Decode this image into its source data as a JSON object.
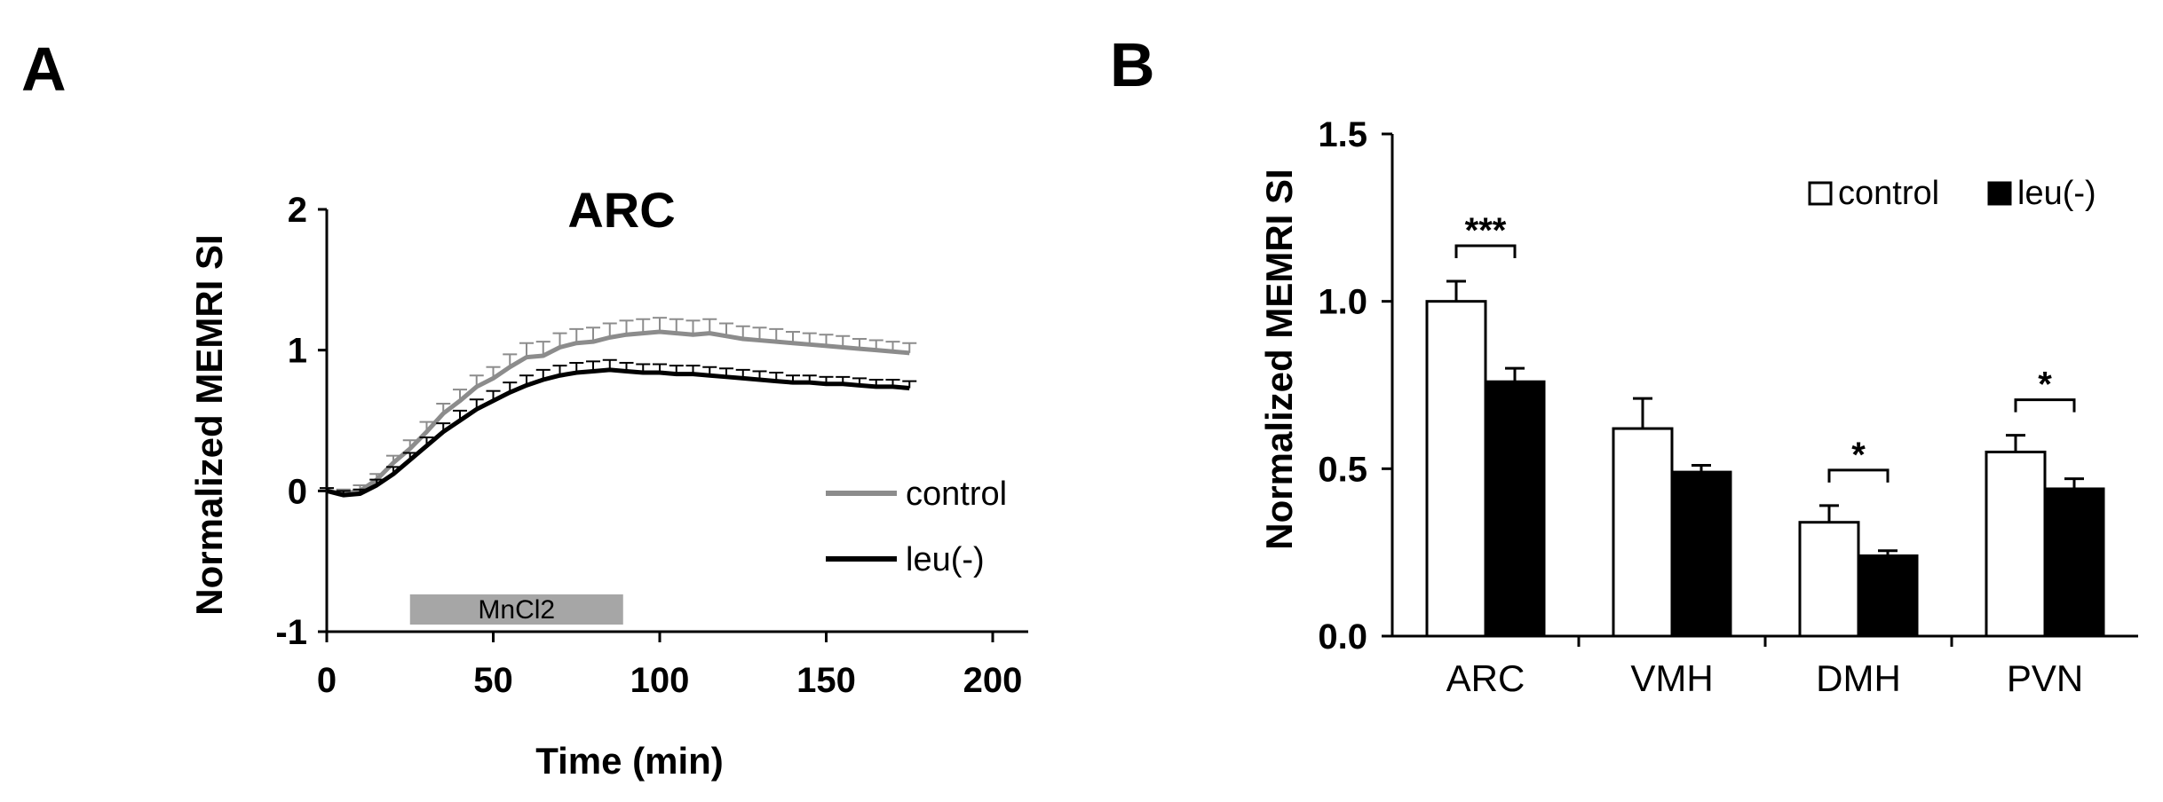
{
  "chart_data": [
    {
      "panel": "A",
      "type": "line",
      "title": "ARC",
      "xlabel": "Time (min)",
      "ylabel": "Normalized MEMRI SI",
      "xlim": [
        0,
        200
      ],
      "ylim": [
        -1,
        2
      ],
      "xticks": [
        0,
        50,
        100,
        150,
        200
      ],
      "yticks": [
        -1,
        0,
        1,
        2
      ],
      "xtick_labels": [
        "0",
        "50",
        "100",
        "150",
        "200"
      ],
      "ytick_labels": [
        "-1",
        "0",
        "1",
        "2"
      ],
      "legend": [
        "control",
        "leu(-)"
      ],
      "legend_position": "right",
      "series": [
        {
          "name": "control",
          "color": "#8c8c8c",
          "x": [
            0,
            5,
            10,
            15,
            20,
            25,
            30,
            35,
            40,
            45,
            50,
            55,
            60,
            65,
            70,
            75,
            80,
            85,
            90,
            95,
            100,
            105,
            110,
            115,
            120,
            125,
            130,
            135,
            140,
            145,
            150,
            155,
            160,
            165,
            170,
            175
          ],
          "y": [
            0.0,
            -0.02,
            0.0,
            0.08,
            0.2,
            0.3,
            0.42,
            0.55,
            0.64,
            0.74,
            0.8,
            0.88,
            0.95,
            0.96,
            1.02,
            1.05,
            1.06,
            1.09,
            1.11,
            1.12,
            1.13,
            1.12,
            1.11,
            1.12,
            1.1,
            1.08,
            1.07,
            1.06,
            1.05,
            1.04,
            1.03,
            1.02,
            1.01,
            1.0,
            0.99,
            0.98
          ],
          "err": [
            0.02,
            0.03,
            0.04,
            0.04,
            0.05,
            0.06,
            0.07,
            0.07,
            0.08,
            0.08,
            0.08,
            0.09,
            0.1,
            0.1,
            0.1,
            0.1,
            0.1,
            0.1,
            0.1,
            0.1,
            0.1,
            0.1,
            0.1,
            0.1,
            0.09,
            0.09,
            0.09,
            0.09,
            0.08,
            0.08,
            0.08,
            0.08,
            0.07,
            0.07,
            0.07,
            0.07
          ]
        },
        {
          "name": "leu(-)",
          "color": "#000000",
          "x": [
            0,
            5,
            10,
            15,
            20,
            25,
            30,
            35,
            40,
            45,
            50,
            55,
            60,
            65,
            70,
            75,
            80,
            85,
            90,
            95,
            100,
            105,
            110,
            115,
            120,
            125,
            130,
            135,
            140,
            145,
            150,
            155,
            160,
            165,
            170,
            175
          ],
          "y": [
            0.0,
            -0.03,
            -0.02,
            0.04,
            0.12,
            0.22,
            0.32,
            0.42,
            0.5,
            0.58,
            0.64,
            0.7,
            0.75,
            0.79,
            0.82,
            0.84,
            0.85,
            0.86,
            0.85,
            0.84,
            0.84,
            0.83,
            0.83,
            0.82,
            0.81,
            0.8,
            0.79,
            0.78,
            0.77,
            0.77,
            0.76,
            0.76,
            0.75,
            0.74,
            0.74,
            0.73
          ],
          "err": [
            0.02,
            0.03,
            0.03,
            0.04,
            0.05,
            0.05,
            0.06,
            0.06,
            0.07,
            0.07,
            0.07,
            0.07,
            0.07,
            0.07,
            0.07,
            0.07,
            0.07,
            0.07,
            0.06,
            0.06,
            0.06,
            0.06,
            0.06,
            0.06,
            0.06,
            0.06,
            0.06,
            0.06,
            0.05,
            0.05,
            0.05,
            0.05,
            0.05,
            0.05,
            0.05,
            0.05
          ]
        }
      ],
      "annotations": [
        {
          "label": "MnCl2",
          "type": "bar",
          "x_start": 25,
          "x_end": 89,
          "color": "#a6a6a6"
        }
      ]
    },
    {
      "panel": "B",
      "type": "bar",
      "title": "",
      "xlabel": "",
      "ylabel": "Normalized MEMRI SI",
      "ylim": [
        0,
        1.5
      ],
      "yticks": [
        0.0,
        0.5,
        1.0,
        1.5
      ],
      "ytick_labels": [
        "0.0",
        "0.5",
        "1.0",
        "1.5"
      ],
      "categories": [
        "ARC",
        "VMH",
        "DMH",
        "PVN"
      ],
      "legend": [
        "control",
        "leu(-)"
      ],
      "legend_position": "top-right",
      "series": [
        {
          "name": "control",
          "fill": "#ffffff",
          "values": [
            1.0,
            0.62,
            0.34,
            0.55
          ],
          "err": [
            0.06,
            0.09,
            0.05,
            0.05
          ]
        },
        {
          "name": "leu(-)",
          "fill": "#000000",
          "values": [
            0.76,
            0.49,
            0.24,
            0.44
          ],
          "err": [
            0.04,
            0.02,
            0.015,
            0.03
          ]
        }
      ],
      "significance": [
        {
          "category": "ARC",
          "label": "***"
        },
        {
          "category": "DMH",
          "label": "*"
        },
        {
          "category": "PVN",
          "label": "*"
        }
      ]
    }
  ],
  "panels": {
    "a_label": "A",
    "b_label": "B"
  }
}
